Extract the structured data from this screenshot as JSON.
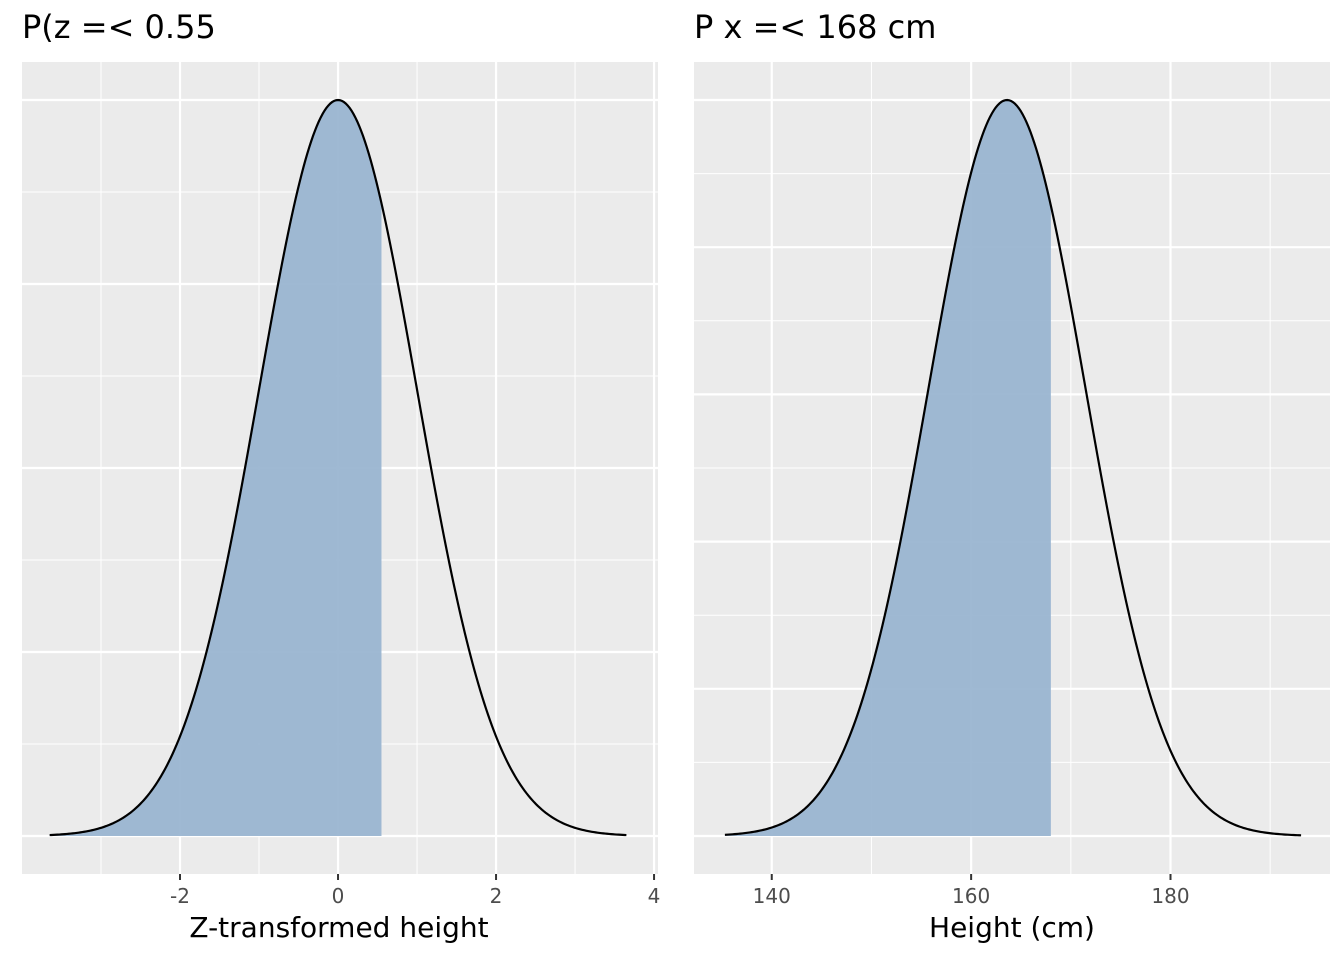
{
  "chart_data": [
    {
      "type": "area",
      "title": "P(z =< 0.55",
      "xlabel": "Z-transformed height",
      "ylabel": "",
      "distribution": {
        "mean": 0,
        "sd": 1
      },
      "x_range": [
        -3.65,
        3.65
      ],
      "shade_upper": 0.55,
      "xlim": [
        -4.0,
        4.05
      ],
      "x_ticks": [
        -2,
        0,
        2,
        4
      ],
      "x_tick_labels": [
        "-2",
        "0",
        "2",
        "4"
      ],
      "grid": true,
      "legend": "none",
      "fill_color": "#9ab5d1",
      "line_color": "#000000"
    },
    {
      "type": "area",
      "title": "P x =< 168 cm",
      "xlabel": "Height (cm)",
      "ylabel": "",
      "distribution": {
        "mean": 163.6,
        "sd": 7.9
      },
      "x_range": [
        135.3,
        193.1
      ],
      "shade_upper": 168,
      "xlim": [
        132.2,
        196.0
      ],
      "x_ticks": [
        140,
        160,
        180
      ],
      "x_tick_labels": [
        "140",
        "160",
        "180"
      ],
      "grid": true,
      "legend": "none",
      "fill_color": "#9ab5d1",
      "line_color": "#000000"
    }
  ],
  "colors": {
    "panel_background": "#ebebeb",
    "grid": "#ffffff",
    "tick_text": "#4d4d4d"
  }
}
